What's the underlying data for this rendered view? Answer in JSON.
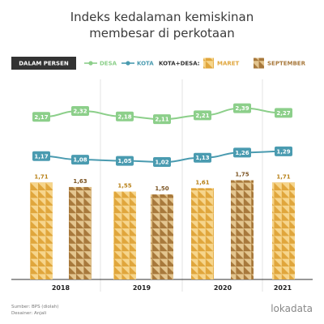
{
  "title_line1": "Indeks kedalaman kemiskinan",
  "title_line2": "membesar di perkotaan",
  "legend": {
    "unit": "DALAM PERSEN",
    "desa": "DESA",
    "kota": "KOTA",
    "combined": "KOTA+DESA:",
    "maret": "MARET",
    "september": "SEPTEMBER"
  },
  "colors": {
    "desa": "#8ccf8a",
    "kota": "#4a9bb0",
    "maret_light": "#f6d58c",
    "maret_dark": "#e0a63c",
    "sept_light": "#e3c58f",
    "sept_dark": "#a8793c"
  },
  "chart_data": {
    "type": "bar",
    "x": [
      "Maret 2018",
      "September 2018",
      "Maret 2019",
      "September 2019",
      "Maret 2020",
      "September 2020",
      "Maret 2021"
    ],
    "years": [
      "2018",
      "2019",
      "2020",
      "2021"
    ],
    "series": [
      {
        "name": "DESA",
        "type": "line",
        "values": [
          2.17,
          2.32,
          2.18,
          2.11,
          2.21,
          2.39,
          2.27
        ]
      },
      {
        "name": "KOTA",
        "type": "line",
        "values": [
          1.17,
          1.08,
          1.05,
          1.02,
          1.13,
          1.26,
          1.29
        ]
      },
      {
        "name": "KOTA+DESA",
        "type": "bar",
        "values": [
          1.71,
          1.63,
          1.55,
          1.5,
          1.61,
          1.75,
          1.71
        ],
        "period": [
          "MARET",
          "SEPTEMBER",
          "MARET",
          "SEPTEMBER",
          "MARET",
          "SEPTEMBER",
          "MARET"
        ]
      }
    ],
    "value_labels": [
      "1,71",
      "1,63",
      "1,55",
      "1,50",
      "1,61",
      "1,75",
      "1,71"
    ],
    "desa_labels": [
      "2,17",
      "2,32",
      "2,18",
      "2,11",
      "2,21",
      "2,39",
      "2,27"
    ],
    "kota_labels": [
      "1,17",
      "1,08",
      "1,05",
      "1,02",
      "1,13",
      "1,26",
      "1,29"
    ]
  },
  "footer": {
    "source": "Sumber: BPS (diolah)",
    "designer": "Desainer: Anjali",
    "brand": "lokadata"
  }
}
